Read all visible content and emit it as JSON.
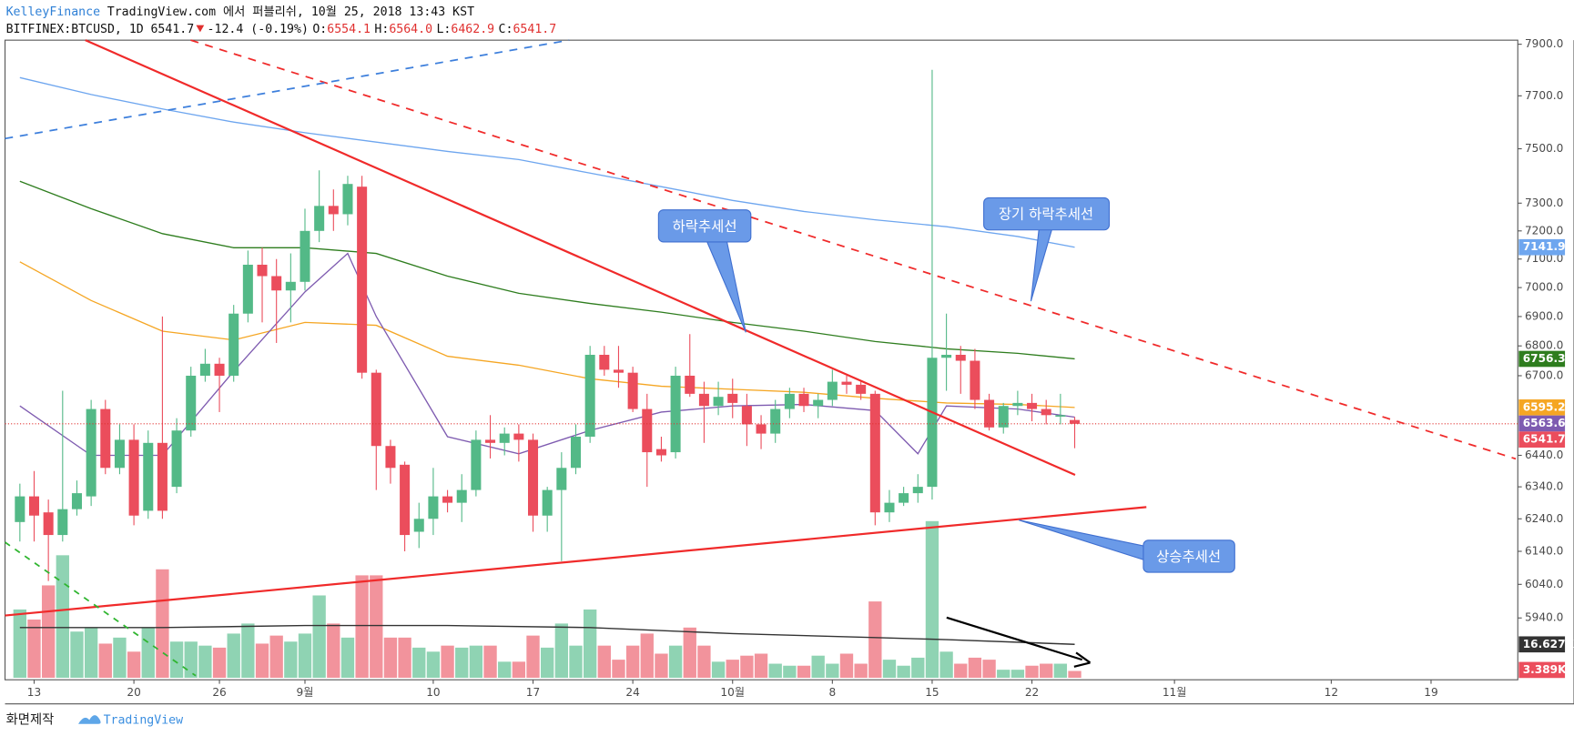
{
  "chart_data": {
    "type": "candlestick",
    "header": {
      "publisher": "KelleyFinance",
      "published": "TradingView.com 에서 퍼블리쉬, 10월 25, 2018 13:43 KST",
      "symbol": "BITFINEX:BTCUSD, 1D",
      "last": "6541.7",
      "change": "-12.4 (-0.19%)",
      "ohlc": [
        {
          "label": "O:",
          "value": "6554.1"
        },
        {
          "label": "H:",
          "value": "6564.0"
        },
        {
          "label": "L:",
          "value": "6462.9"
        },
        {
          "label": "C:",
          "value": "6541.7"
        }
      ]
    },
    "dates": [
      "2018-08-12",
      "2018-08-13",
      "2018-08-14",
      "2018-08-15",
      "2018-08-16",
      "2018-08-17",
      "2018-08-18",
      "2018-08-19",
      "2018-08-20",
      "2018-08-21",
      "2018-08-22",
      "2018-08-23",
      "2018-08-24",
      "2018-08-25",
      "2018-08-26",
      "2018-08-27",
      "2018-08-28",
      "2018-08-29",
      "2018-08-30",
      "2018-08-31",
      "2018-09-01",
      "2018-09-02",
      "2018-09-03",
      "2018-09-04",
      "2018-09-05",
      "2018-09-06",
      "2018-09-07",
      "2018-09-08",
      "2018-09-09",
      "2018-09-10",
      "2018-09-11",
      "2018-09-12",
      "2018-09-13",
      "2018-09-14",
      "2018-09-15",
      "2018-09-16",
      "2018-09-17",
      "2018-09-18",
      "2018-09-19",
      "2018-09-20",
      "2018-09-21",
      "2018-09-22",
      "2018-09-23",
      "2018-09-24",
      "2018-09-25",
      "2018-09-26",
      "2018-09-27",
      "2018-09-28",
      "2018-09-29",
      "2018-09-30",
      "2018-10-01",
      "2018-10-02",
      "2018-10-03",
      "2018-10-04",
      "2018-10-05",
      "2018-10-06",
      "2018-10-07",
      "2018-10-08",
      "2018-10-09",
      "2018-10-10",
      "2018-10-11",
      "2018-10-12",
      "2018-10-13",
      "2018-10-14",
      "2018-10-15",
      "2018-10-16",
      "2018-10-17",
      "2018-10-18",
      "2018-10-19",
      "2018-10-20",
      "2018-10-21",
      "2018-10-22",
      "2018-10-23",
      "2018-10-24",
      "2018-10-25"
    ],
    "open": [
      6230,
      6310,
      6260,
      6190,
      6270,
      6310,
      6590,
      6400,
      6490,
      6265,
      6480,
      6340,
      6520,
      6700,
      6740,
      6700,
      6910,
      7080,
      7040,
      6990,
      7020,
      7200,
      7290,
      7260,
      7360,
      6710,
      6470,
      6410,
      6200,
      6240,
      6310,
      6290,
      6330,
      6490,
      6480,
      6510,
      6490,
      6250,
      6330,
      6400,
      6500,
      6770,
      6720,
      6710,
      6590,
      6460,
      6450,
      6700,
      6640,
      6600,
      6640,
      6600,
      6540,
      6510,
      6590,
      6640,
      6600,
      6620,
      6680,
      6670,
      6640,
      6260,
      6290,
      6320,
      6340,
      6760,
      6770,
      6750,
      6620,
      6530,
      6600,
      6610,
      6590,
      6565,
      6554.1
    ],
    "high": [
      6350,
      6390,
      6300,
      6650,
      6360,
      6620,
      6620,
      6540,
      6540,
      6520,
      6900,
      6560,
      6730,
      6790,
      6760,
      6940,
      7130,
      7140,
      7100,
      7120,
      7280,
      7420,
      7350,
      7400,
      7400,
      6720,
      6490,
      6420,
      6290,
      6400,
      6330,
      6380,
      6520,
      6570,
      6530,
      6540,
      6510,
      6340,
      6450,
      6540,
      6800,
      6800,
      6800,
      6730,
      6640,
      6500,
      6730,
      6840,
      6680,
      6680,
      6690,
      6640,
      6570,
      6620,
      6660,
      6660,
      6640,
      6720,
      6700,
      6680,
      6650,
      6330,
      6340,
      6380,
      7800,
      6910,
      6800,
      6790,
      6640,
      6610,
      6650,
      6640,
      6620,
      6640,
      6564.0
    ],
    "low": [
      6170,
      6170,
      6050,
      6170,
      6250,
      6280,
      6380,
      6380,
      6220,
      6240,
      6240,
      6320,
      6500,
      6680,
      6580,
      6680,
      6880,
      6880,
      6810,
      6880,
      6990,
      7160,
      7200,
      7220,
      6690,
      6330,
      6350,
      6140,
      6150,
      6190,
      6260,
      6230,
      6310,
      6430,
      6440,
      6420,
      6200,
      6200,
      6110,
      6380,
      6480,
      6700,
      6660,
      6580,
      6340,
      6420,
      6430,
      6630,
      6480,
      6570,
      6560,
      6470,
      6460,
      6480,
      6560,
      6580,
      6560,
      6600,
      6640,
      6620,
      6220,
      6230,
      6280,
      6290,
      6300,
      6650,
      6640,
      6590,
      6520,
      6510,
      6570,
      6550,
      6540,
      6540,
      6462.9
    ],
    "close": [
      6310,
      6250,
      6190,
      6270,
      6320,
      6590,
      6400,
      6490,
      6250,
      6480,
      6265,
      6520,
      6700,
      6740,
      6700,
      6910,
      7080,
      7040,
      6990,
      7020,
      7200,
      7290,
      7260,
      7370,
      6710,
      6470,
      6400,
      6190,
      6240,
      6310,
      6290,
      6330,
      6490,
      6480,
      6510,
      6490,
      6250,
      6330,
      6400,
      6500,
      6770,
      6720,
      6710,
      6590,
      6450,
      6440,
      6700,
      6640,
      6600,
      6630,
      6610,
      6540,
      6510,
      6590,
      6640,
      6600,
      6620,
      6680,
      6670,
      6640,
      6260,
      6290,
      6320,
      6340,
      6760,
      6770,
      6750,
      6620,
      6530,
      6600,
      6610,
      6590,
      6570,
      6570,
      6541.7
    ],
    "up_color": "#53b987",
    "down_color": "#eb4d5c",
    "volume": [
      34,
      29,
      46,
      61,
      23,
      25,
      17,
      20,
      13,
      25,
      54,
      18,
      18,
      16,
      15,
      22,
      27,
      17,
      21,
      18,
      22,
      41,
      27,
      20,
      51,
      51,
      20,
      20,
      15,
      13,
      16,
      15,
      16,
      16,
      8,
      8,
      21,
      15,
      27,
      16,
      34,
      16,
      9,
      16,
      22,
      12,
      16,
      25,
      16,
      8,
      9,
      11,
      12,
      7,
      6,
      6,
      11,
      7,
      12,
      7,
      38,
      9,
      6,
      10,
      78,
      13,
      7,
      10,
      9,
      4,
      4,
      6,
      7,
      7,
      3.389
    ],
    "volume_labels": [
      null,
      null,
      null,
      null,
      null,
      null,
      null,
      null,
      null,
      null,
      null,
      null,
      null,
      null,
      null,
      null,
      null,
      null,
      null,
      null,
      null,
      null,
      null,
      null,
      null,
      null,
      null,
      null,
      null,
      null,
      null,
      null,
      null,
      null,
      null,
      null,
      null,
      null,
      null,
      null,
      null,
      null,
      null,
      null,
      null,
      null,
      null,
      null,
      null,
      null,
      null,
      null,
      null,
      null,
      null,
      null,
      null,
      null,
      null,
      null,
      null,
      null,
      null,
      null,
      null,
      null,
      null,
      null,
      null,
      null,
      null,
      null,
      null,
      null,
      "3.389K"
    ],
    "volume_up_color": "#8fd3b3",
    "volume_down_color": "#f2939c",
    "vlim": [
      0,
      317.5
    ],
    "volume_ma": {
      "color": "#333333",
      "x": [
        "2018-08-12",
        "2018-08-22",
        "2018-09-01",
        "2018-09-11",
        "2018-09-21",
        "2018-10-01",
        "2018-10-11",
        "2018-10-16",
        "2018-10-25"
      ],
      "values": [
        25,
        25,
        26,
        26,
        25,
        22,
        20,
        19,
        16.627
      ],
      "value_labels": [
        null,
        null,
        null,
        null,
        null,
        null,
        null,
        null,
        "16.627K"
      ]
    },
    "series": [
      {
        "color": "#6ea6ef",
        "x": [
          "2018-08-12",
          "2018-08-17",
          "2018-08-22",
          "2018-08-27",
          "2018-09-01",
          "2018-09-06",
          "2018-09-11",
          "2018-09-16",
          "2018-09-21",
          "2018-09-26",
          "2018-10-01",
          "2018-10-06",
          "2018-10-11",
          "2018-10-16",
          "2018-10-21",
          "2018-10-25"
        ],
        "values": [
          7770,
          7705,
          7650,
          7600,
          7560,
          7525,
          7490,
          7460,
          7410,
          7360,
          7310,
          7270,
          7240,
          7215,
          7180,
          7141.9
        ]
      },
      {
        "color": "#2e7d1e",
        "x": [
          "2018-08-12",
          "2018-08-17",
          "2018-08-22",
          "2018-08-27",
          "2018-09-01",
          "2018-09-06",
          "2018-09-11",
          "2018-09-16",
          "2018-09-21",
          "2018-09-26",
          "2018-10-01",
          "2018-10-06",
          "2018-10-11",
          "2018-10-16",
          "2018-10-21",
          "2018-10-25"
        ],
        "values": [
          7380,
          7280,
          7190,
          7140,
          7140,
          7120,
          7040,
          6980,
          6945,
          6915,
          6880,
          6850,
          6815,
          6790,
          6775,
          6756.3
        ]
      },
      {
        "color": "#f5a623",
        "x": [
          "2018-08-12",
          "2018-08-17",
          "2018-08-22",
          "2018-08-27",
          "2018-09-01",
          "2018-09-06",
          "2018-09-11",
          "2018-09-16",
          "2018-09-21",
          "2018-09-26",
          "2018-10-01",
          "2018-10-06",
          "2018-10-11",
          "2018-10-16",
          "2018-10-21",
          "2018-10-25"
        ],
        "values": [
          7090,
          6955,
          6850,
          6820,
          6880,
          6870,
          6765,
          6735,
          6690,
          6665,
          6655,
          6645,
          6625,
          6610,
          6605,
          6595.2
        ]
      },
      {
        "color": "#7e5bb0",
        "x": [
          "2018-08-12",
          "2018-08-17",
          "2018-08-22",
          "2018-08-27",
          "2018-09-01",
          "2018-09-04",
          "2018-09-06",
          "2018-09-11",
          "2018-09-16",
          "2018-09-21",
          "2018-09-26",
          "2018-10-01",
          "2018-10-06",
          "2018-10-11",
          "2018-10-14",
          "2018-10-16",
          "2018-10-21",
          "2018-10-25"
        ],
        "values": [
          6600,
          6440,
          6440,
          6715,
          6985,
          7120,
          6900,
          6500,
          6445,
          6520,
          6580,
          6600,
          6605,
          6585,
          6445,
          6600,
          6590,
          6563.6
        ]
      }
    ],
    "log_scale": true,
    "grid": false,
    "ylim": [
      5766,
      7916
    ],
    "yticks": [
      {
        "value": 7900,
        "label": "7900.0"
      },
      {
        "value": 7700,
        "label": "7700.0"
      },
      {
        "value": 7500,
        "label": "7500.0"
      },
      {
        "value": 7300,
        "label": "7300.0"
      },
      {
        "value": 7200,
        "label": "7200.0"
      },
      {
        "value": 7100,
        "label": "7100.0"
      },
      {
        "value": 7000,
        "label": "7000.0"
      },
      {
        "value": 6900,
        "label": "6900.0"
      },
      {
        "value": 6800,
        "label": "6800.0"
      },
      {
        "value": 6700,
        "label": "6700.0"
      },
      {
        "value": 6440,
        "label": "6440.0"
      },
      {
        "value": 6340,
        "label": "6340.0"
      },
      {
        "value": 6240,
        "label": "6240.0"
      },
      {
        "value": 6140,
        "label": "6140.0"
      },
      {
        "value": 6040,
        "label": "6040.0"
      },
      {
        "value": 5940,
        "label": "5940.0"
      }
    ],
    "xticks": [
      {
        "value": "2018-08-13",
        "label": "13"
      },
      {
        "value": "2018-08-20",
        "label": "20"
      },
      {
        "value": "2018-08-26",
        "label": "26"
      },
      {
        "value": "2018-09-01",
        "label": "9월"
      },
      {
        "value": "2018-09-10",
        "label": "10"
      },
      {
        "value": "2018-09-17",
        "label": "17"
      },
      {
        "value": "2018-09-24",
        "label": "24"
      },
      {
        "value": "2018-10-01",
        "label": "10월"
      },
      {
        "value": "2018-10-08",
        "label": "8"
      },
      {
        "value": "2018-10-15",
        "label": "15"
      },
      {
        "value": "2018-10-22",
        "label": "22"
      },
      {
        "value": "2018-11-01",
        "label": "11월"
      },
      {
        "value": "2018-11-12",
        "label": "12"
      },
      {
        "value": "2018-11-19",
        "label": "19"
      }
    ],
    "annotations": [
      "하락추세선",
      "장기 하락추세선",
      "상승추세선"
    ],
    "footer": {
      "credit": "화면제작",
      "brand": "TradingView"
    }
  }
}
